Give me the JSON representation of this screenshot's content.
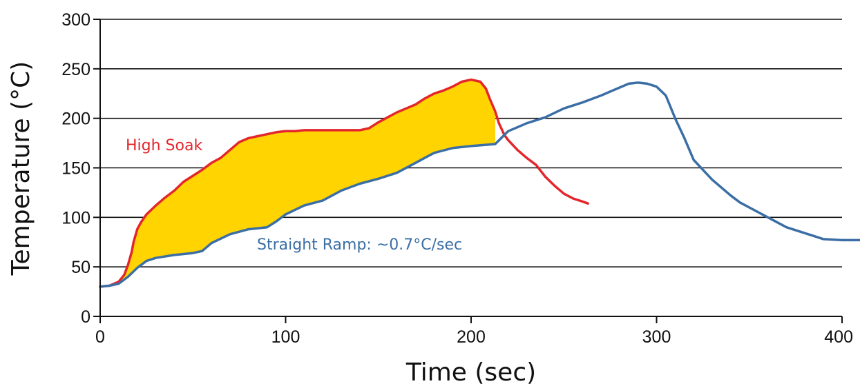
{
  "chart_data": {
    "type": "line",
    "title": "",
    "xlabel": "Time (sec)",
    "ylabel": "Temperature (°C)",
    "xlim": [
      0,
      400
    ],
    "ylim": [
      0,
      300
    ],
    "xticks": [
      0,
      100,
      200,
      300,
      400
    ],
    "yticks": [
      0,
      50,
      100,
      150,
      200,
      250,
      300
    ],
    "xtick_labels": [
      "0",
      "100",
      "200",
      "300",
      "400"
    ],
    "ytick_labels": [
      "0",
      "50",
      "100",
      "150",
      "200",
      "250",
      "300"
    ],
    "grid": "horizontal",
    "legend": "none",
    "shaded_region": {
      "between": [
        "High Soak",
        "Straight Ramp"
      ],
      "x_range": [
        0,
        213
      ],
      "color": "#ffd400"
    },
    "series": [
      {
        "name": "High Soak",
        "label": "High Soak",
        "color": "#e3262c",
        "x": [
          0,
          5,
          10,
          13,
          15,
          17,
          18,
          20,
          22,
          25,
          30,
          35,
          40,
          45,
          50,
          55,
          60,
          65,
          70,
          75,
          80,
          85,
          90,
          95,
          100,
          105,
          110,
          120,
          130,
          140,
          145,
          150,
          155,
          160,
          165,
          170,
          175,
          180,
          185,
          190,
          195,
          200,
          205,
          208,
          210,
          213,
          215,
          218,
          220,
          225,
          230,
          235,
          240,
          245,
          250,
          255,
          260,
          263
        ],
        "y": [
          30,
          31,
          35,
          42,
          52,
          65,
          75,
          88,
          95,
          103,
          112,
          120,
          127,
          136,
          142,
          148,
          155,
          160,
          168,
          176,
          180,
          182,
          184,
          186,
          187,
          187,
          188,
          188,
          188,
          188,
          190,
          196,
          201,
          206,
          210,
          214,
          220,
          225,
          228,
          232,
          237,
          239,
          237,
          230,
          220,
          207,
          195,
          183,
          178,
          168,
          160,
          153,
          141,
          132,
          124,
          119,
          116,
          114
        ]
      },
      {
        "name": "Straight Ramp",
        "label": "Straight Ramp: ~0.7°C/sec",
        "color": "#3a6ea5",
        "x": [
          0,
          5,
          10,
          15,
          20,
          25,
          30,
          40,
          50,
          55,
          60,
          70,
          80,
          90,
          95,
          100,
          110,
          120,
          130,
          140,
          150,
          160,
          170,
          175,
          180,
          190,
          200,
          213,
          220,
          230,
          240,
          250,
          260,
          270,
          280,
          285,
          290,
          295,
          300,
          305,
          310,
          315,
          320,
          330,
          340,
          345,
          350,
          360,
          370,
          380,
          385,
          390,
          400,
          410
        ],
        "y": [
          30,
          31,
          33,
          40,
          49,
          56,
          59,
          62,
          64,
          66,
          74,
          83,
          88,
          90,
          96,
          103,
          112,
          117,
          127,
          134,
          139,
          145,
          155,
          160,
          165,
          170,
          172,
          174,
          187,
          195,
          201,
          210,
          216,
          223,
          231,
          235,
          236,
          235,
          232,
          223,
          200,
          180,
          158,
          138,
          122,
          115,
          110,
          100,
          90,
          84,
          81,
          78,
          77,
          77
        ]
      }
    ]
  }
}
